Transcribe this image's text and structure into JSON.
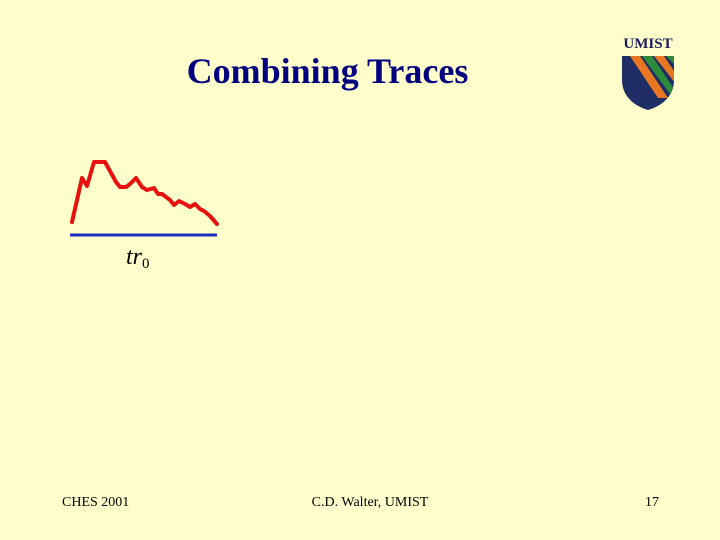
{
  "slide": {
    "title": "Combining Traces",
    "logo_text": "UMIST",
    "trace_label": {
      "base": "tr",
      "subscript": "0"
    },
    "footer": {
      "left": "CHES 2001",
      "center": "C.D. Walter, UMIST",
      "right": "17"
    },
    "colors": {
      "background": "#FFFFCC",
      "title": "#000080",
      "trace": "#E8110E",
      "baseline": "#1F2BC2",
      "logo_navy": "#1F2E66",
      "logo_orange": "#E87722",
      "logo_green": "#2E8B3A"
    },
    "icons": [
      "umist-shield-icon"
    ]
  }
}
